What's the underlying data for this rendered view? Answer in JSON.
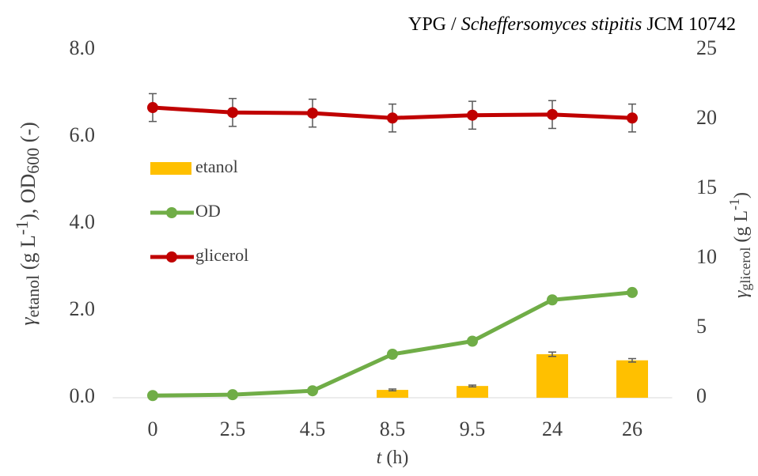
{
  "chart_data": {
    "type": "bar-line",
    "title_parts": [
      "YPG / ",
      "Scheffersomyces stipitis",
      " JCM 10742"
    ],
    "x_label_parts": [
      "t",
      " (h)"
    ],
    "y_label_parts": [
      "γ",
      "etanol",
      " (g L",
      "-1",
      "), OD",
      "600",
      " (-)"
    ],
    "y2_label_parts": [
      "γ",
      "glicerol",
      " (g L",
      "-1",
      ")"
    ],
    "categories": [
      "0",
      "2.5",
      "4.5",
      "8.5",
      "9.5",
      "24",
      "26"
    ],
    "ylim": [
      0,
      8
    ],
    "yticks": [
      {
        "value": 0,
        "label": "0.0"
      },
      {
        "value": 2,
        "label": "2.0"
      },
      {
        "value": 4,
        "label": "4.0"
      },
      {
        "value": 6,
        "label": "6.0"
      },
      {
        "value": 8,
        "label": "8.0"
      }
    ],
    "y2lim": [
      0,
      25
    ],
    "y2ticks": [
      0,
      5,
      10,
      15,
      20,
      25
    ],
    "legend": "left",
    "series": [
      {
        "name": "etanol",
        "kind": "bar",
        "color": "#ffc000",
        "values": [
          null,
          null,
          null,
          0.18,
          0.27,
          1.0,
          0.86
        ],
        "errors": [
          null,
          null,
          null,
          0.02,
          0.02,
          0.05,
          0.04
        ]
      },
      {
        "name": "OD",
        "kind": "line",
        "color": "#70ad47",
        "values": [
          0.05,
          0.07,
          0.16,
          1.0,
          1.3,
          2.25,
          2.42
        ],
        "errors": [
          0.02,
          0.02,
          0.03,
          0.04,
          0.04,
          0.08,
          0.08
        ]
      },
      {
        "name": "glicerol",
        "kind": "line",
        "axis": "y2",
        "color": "#c00000",
        "values": [
          20.85,
          20.5,
          20.45,
          20.1,
          20.3,
          20.35,
          20.1
        ],
        "errors": [
          1.0,
          1.0,
          1.0,
          1.0,
          1.0,
          1.0,
          1.0
        ]
      }
    ]
  }
}
